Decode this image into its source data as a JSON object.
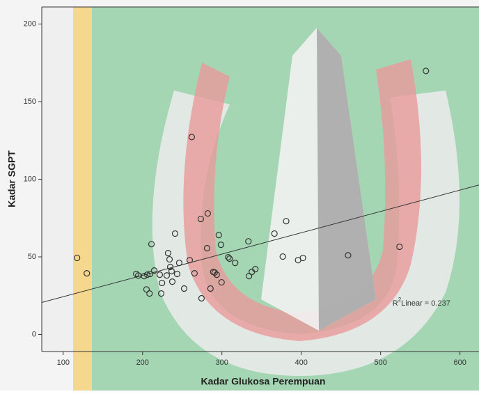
{
  "chart_data": {
    "type": "scatter",
    "x_label": "Kadar Glukosa Perempuan",
    "y_label": "Kadar SGPT",
    "xlim": [
      73,
      624
    ],
    "ylim": [
      -11,
      211
    ],
    "xticks": [
      100,
      200,
      300,
      400,
      500,
      600
    ],
    "yticks": [
      0,
      50,
      100,
      150,
      200
    ],
    "series": [
      {
        "color": "#333333",
        "x": [
          117.5,
          129.8,
          192,
          194.6,
          202,
          205.9,
          209.5,
          214.7,
          221.7,
          205,
          208.8,
          211.2,
          223.5,
          224.5,
          230.5,
          232.2,
          234,
          234.9,
          236.6,
          237.5,
          241,
          243.6,
          246.2,
          252.4,
          259.4,
          262,
          265.5,
          273.4,
          274.3,
          282.2,
          281.3,
          285.6,
          289.1,
          290.9,
          293.5,
          296.1,
          298.8,
          299.6,
          308,
          309.7,
          316.7,
          333.4,
          334.2,
          337.7,
          342.1,
          366.2,
          376.7,
          381,
          396,
          402.1,
          459,
          523.8,
          557.1
        ],
        "values": [
          49.3,
          39.4,
          39,
          38,
          37.6,
          38.5,
          39,
          41.2,
          38.5,
          29,
          26.4,
          58.2,
          26.4,
          33.2,
          38,
          52.4,
          48.4,
          43.5,
          40.8,
          34,
          65,
          39,
          46.1,
          29.6,
          47.9,
          127.2,
          39.4,
          74.4,
          23.3,
          78,
          55.6,
          29.6,
          40.3,
          39.9,
          38.5,
          64,
          57.8,
          33.6,
          49.7,
          48.8,
          46.1,
          60,
          37.6,
          40.3,
          42.1,
          65,
          50.2,
          73,
          47.9,
          49.3,
          51,
          56.5,
          169.8
        ]
      }
    ],
    "fit_line": {
      "color": "#333333",
      "x": [
        73,
        624
      ],
      "values": [
        20.6,
        96.3
      ]
    },
    "annotation": {
      "base": "R",
      "sup": "2",
      "text": "Linear = 0.237",
      "x": 515,
      "y": 20
    }
  }
}
